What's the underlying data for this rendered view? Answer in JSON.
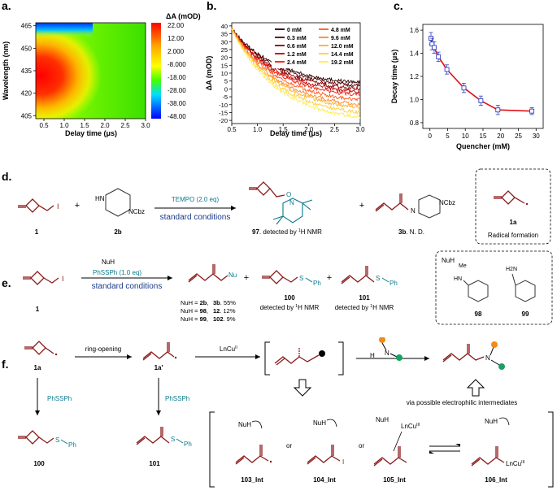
{
  "panel_labels": {
    "a": "a.",
    "b": "b.",
    "c": "c.",
    "d": "d.",
    "e": "e.",
    "f": "f."
  },
  "chart_data": [
    {
      "type": "heatmap",
      "panel": "a.",
      "xlabel": "Delay time (μs)",
      "ylabel": "Wavelength (nm)",
      "xticks": [
        "0.5",
        "1.0",
        "1.5",
        "2.0",
        "2.5",
        "3.0"
      ],
      "yticks": [
        "465",
        "450",
        "435",
        "420",
        "405"
      ],
      "colorbar_label": "ΔA (mOD)",
      "colorbar_ticks": [
        "22.00",
        "12.00",
        "2.000",
        "-8.000",
        "-18.00",
        "-28.00",
        "-38.00",
        "-48.00"
      ],
      "xlim": [
        0.3,
        3.0
      ],
      "ylim": [
        403,
        467
      ],
      "colorbar_range": [
        -48,
        22
      ]
    },
    {
      "type": "line",
      "panel": "b.",
      "xlabel": "Delay time (μs)",
      "ylabel": "ΔA (mOD)",
      "xticks": [
        "0.5",
        "1.0",
        "1.5",
        "2.0",
        "2.5",
        "3.0"
      ],
      "yticks": [
        "40",
        "35",
        "30",
        "25",
        "20",
        "15",
        "10",
        "5",
        "0",
        "-5",
        "-10",
        "-15",
        "-20"
      ],
      "xlim": [
        0.5,
        3.0
      ],
      "ylim": [
        -22,
        42
      ],
      "legend_position": "top-right",
      "series": [
        {
          "name": "0 mM",
          "color": "#2a0000",
          "start": 38,
          "end": 4
        },
        {
          "name": "0.3 mM",
          "color": "#5a0000",
          "start": 38,
          "end": 2
        },
        {
          "name": "0.6 mM",
          "color": "#8a0000",
          "start": 38,
          "end": 0
        },
        {
          "name": "1.2 mM",
          "color": "#c00000",
          "start": 38,
          "end": -2
        },
        {
          "name": "2.4 mM",
          "color": "#e82010",
          "start": 38,
          "end": -4
        },
        {
          "name": "4.8 mM",
          "color": "#ff5a1e",
          "start": 38,
          "end": -7
        },
        {
          "name": "9.6 mM",
          "color": "#ff8a28",
          "start": 38,
          "end": -10
        },
        {
          "name": "12.0 mM",
          "color": "#ffb030",
          "start": 38,
          "end": -12
        },
        {
          "name": "14.4 mM",
          "color": "#ffd040",
          "start": 38,
          "end": -15
        },
        {
          "name": "19.2 mM",
          "color": "#ffee50",
          "start": 38,
          "end": -18
        }
      ]
    },
    {
      "type": "line",
      "panel": "c.",
      "xlabel": "Quencher (mM)",
      "ylabel": "Decay time (μs)",
      "xticks": [
        "0",
        "5",
        "10",
        "15",
        "20",
        "25",
        "30"
      ],
      "yticks": [
        "1.6",
        "1.4",
        "1.2",
        "1.0",
        "0.8"
      ],
      "xlim": [
        -2,
        32
      ],
      "ylim": [
        0.75,
        1.65
      ],
      "x": [
        0.3,
        0.6,
        1.2,
        2.4,
        4.8,
        9.6,
        14.4,
        19.2,
        28.8
      ],
      "y": [
        1.53,
        1.48,
        1.45,
        1.37,
        1.26,
        1.1,
        0.99,
        0.91,
        0.9
      ],
      "error": [
        0.05,
        0.05,
        0.05,
        0.04,
        0.04,
        0.04,
        0.04,
        0.04,
        0.03
      ],
      "line_color": "#e0101a",
      "marker_color": "#3040c0"
    }
  ],
  "d": {
    "reactant1": "1",
    "reactant2": "2b",
    "amine_nh": "HN",
    "ncbz": "NCbz",
    "reagent": "TEMPO (2.0 eq)",
    "conditions": "standard conditions",
    "plus": "+",
    "product97_num": "97",
    "product97_text": ". detected by ",
    "product97_nmr": "H NMR",
    "sup1": "1",
    "product3b_num": "3b",
    "product3b_text": ". N. D.",
    "box_label": "1a",
    "box_caption": "Radical formation",
    "tempo_o": "O",
    "tempo_n": "N",
    "pip_n": "N",
    "iodo": "I"
  },
  "e": {
    "reactant1": "1",
    "reagent_top": "NuH",
    "reagent_mid": "PhSSPh (1.0 eq)",
    "conditions": "standard conditions",
    "nu": "Nu",
    "sph": "S",
    "ph": "Ph",
    "plus": "+",
    "rows": [
      {
        "left": "NuH = ",
        "nuh": "2b",
        "prod": "3b",
        "yield": ". 55%"
      },
      {
        "left": "NuH = ",
        "nuh": "98",
        "prod": "12",
        "yield": ". 12%"
      },
      {
        "left": "NuH = ",
        "nuh": "99",
        "prod": "102",
        "yield": ". 9%"
      }
    ],
    "p100": "100",
    "p101": "101",
    "detected": "detected by ",
    "nmr": "H NMR",
    "sup1": "1",
    "box_title": "NuH",
    "me": "Me",
    "hn": "HN",
    "h2n": "H2N",
    "n98": "98",
    "n99": "99",
    "iodo": "I"
  },
  "f": {
    "l1a": "1a",
    "l1a_prime": "1a'",
    "ring_opening": "ring-opening",
    "lncu": "LnCu",
    "lncu_sup": "II",
    "phssph": "PhSSPh",
    "p100": "100",
    "p101": "101",
    "h": "H",
    "n": "N",
    "via": "via possible electrophilic intermediates",
    "nuh": "NuH",
    "or": "or",
    "int103": "103_Int",
    "int104": "104_Int",
    "int105": "105_Int",
    "int106": "106_Int",
    "lncu3": "LnCu",
    "lncu3_sup": "III",
    "iodo": "I",
    "s": "S",
    "ph": "Ph"
  }
}
